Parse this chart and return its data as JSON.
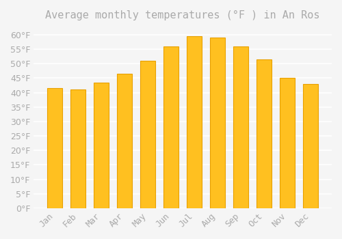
{
  "title": "Average monthly temperatures (°F ) in An Ros",
  "months": [
    "Jan",
    "Feb",
    "Mar",
    "Apr",
    "May",
    "Jun",
    "Jul",
    "Aug",
    "Sep",
    "Oct",
    "Nov",
    "Dec"
  ],
  "values": [
    41.5,
    41.0,
    43.5,
    46.5,
    51.0,
    56.0,
    59.5,
    59.0,
    56.0,
    51.5,
    45.0,
    43.0
  ],
  "bar_color": "#FFC020",
  "bar_edge_color": "#E8A000",
  "background_color": "#F5F5F5",
  "grid_color": "#FFFFFF",
  "text_color": "#AAAAAA",
  "ylim": [
    0,
    63
  ],
  "yticks": [
    0,
    5,
    10,
    15,
    20,
    25,
    30,
    35,
    40,
    45,
    50,
    55,
    60
  ],
  "title_fontsize": 11,
  "tick_fontsize": 9
}
